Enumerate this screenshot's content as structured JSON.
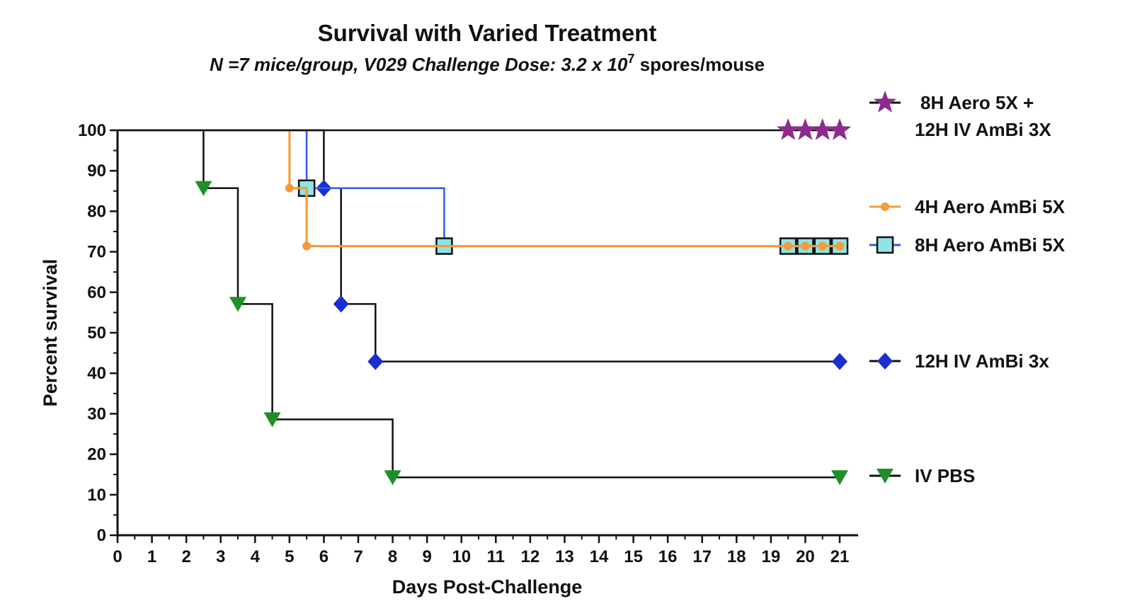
{
  "chart_data": {
    "type": "line",
    "subtype": "kaplan-meier-step",
    "title": "Survival with Varied Treatment",
    "subtitle": {
      "italic_part": "N =7 mice/group, V029 Challenge Dose: 3.2 x 10",
      "exponent": "7",
      "upright_part": " spores/mouse"
    },
    "xlabel": "Days Post-Challenge",
    "ylabel": "Percent survival",
    "xlim": [
      0,
      21
    ],
    "ylim": [
      0,
      100
    ],
    "xticks": [
      "0",
      "1",
      "2",
      "3",
      "4",
      "5",
      "6",
      "7",
      "8",
      "9",
      "10",
      "11",
      "12",
      "13",
      "14",
      "15",
      "16",
      "17",
      "18",
      "19",
      "20",
      "21"
    ],
    "yticks": [
      "0",
      "10",
      "20",
      "30",
      "40",
      "50",
      "60",
      "70",
      "80",
      "90",
      "100"
    ],
    "grid": false,
    "legend_position": "right",
    "series": [
      {
        "name": "8H Aero 5X +",
        "name_line2": "12H  IV AmBi 3X",
        "color": "#8e2a8e",
        "line_color": "#111111",
        "marker": "star",
        "steps": [
          [
            0,
            100
          ],
          [
            21,
            100
          ]
        ],
        "markers": [
          [
            19.5,
            100
          ],
          [
            20,
            100
          ],
          [
            20.5,
            100
          ],
          [
            21,
            100
          ]
        ]
      },
      {
        "name": "4H Aero AmBi 5X",
        "color": "#f39c38",
        "line_color": "#f39c38",
        "marker": "circle",
        "steps": [
          [
            0,
            100
          ],
          [
            5,
            100
          ],
          [
            5,
            85.7
          ],
          [
            5.5,
            85.7
          ],
          [
            5.5,
            71.4
          ],
          [
            21,
            71.4
          ]
        ],
        "markers": [
          [
            5,
            85.7
          ],
          [
            5.5,
            71.4
          ],
          [
            19.5,
            71.4
          ],
          [
            20,
            71.4
          ],
          [
            20.5,
            71.4
          ],
          [
            21,
            71.4
          ]
        ]
      },
      {
        "name": "8H Aero AmBi 5X",
        "color": "#8fe3e6",
        "line_color": "#2f5fe0",
        "marker": "square",
        "steps": [
          [
            0,
            100
          ],
          [
            5.5,
            100
          ],
          [
            5.5,
            85.7
          ],
          [
            9.5,
            85.7
          ],
          [
            9.5,
            71.4
          ],
          [
            21,
            71.4
          ]
        ],
        "markers": [
          [
            5.5,
            85.7
          ],
          [
            9.5,
            71.4
          ],
          [
            19.5,
            71.4
          ],
          [
            20,
            71.4
          ],
          [
            20.5,
            71.4
          ],
          [
            21,
            71.4
          ]
        ]
      },
      {
        "name": "12H IV AmBi 3x",
        "color": "#1a2fcf",
        "line_color": "#111111",
        "marker": "diamond",
        "steps": [
          [
            0,
            100
          ],
          [
            6,
            100
          ],
          [
            6,
            85.7
          ],
          [
            6.5,
            85.7
          ],
          [
            6.5,
            57.1
          ],
          [
            7.5,
            57.1
          ],
          [
            7.5,
            42.9
          ],
          [
            21,
            42.9
          ]
        ],
        "markers": [
          [
            6,
            85.7
          ],
          [
            6.5,
            57.1
          ],
          [
            7.5,
            42.9
          ],
          [
            21,
            42.9
          ]
        ]
      },
      {
        "name": "IV PBS",
        "color": "#1f8f2a",
        "line_color": "#111111",
        "marker": "triangle-down",
        "steps": [
          [
            0,
            100
          ],
          [
            2.5,
            100
          ],
          [
            2.5,
            85.7
          ],
          [
            3.5,
            85.7
          ],
          [
            3.5,
            57.1
          ],
          [
            4.5,
            57.1
          ],
          [
            4.5,
            28.6
          ],
          [
            8,
            28.6
          ],
          [
            8,
            14.3
          ],
          [
            21,
            14.3
          ]
        ],
        "markers": [
          [
            2.5,
            85.7
          ],
          [
            3.5,
            57.1
          ],
          [
            4.5,
            28.6
          ],
          [
            8,
            14.3
          ],
          [
            21,
            14.3
          ]
        ]
      }
    ]
  }
}
